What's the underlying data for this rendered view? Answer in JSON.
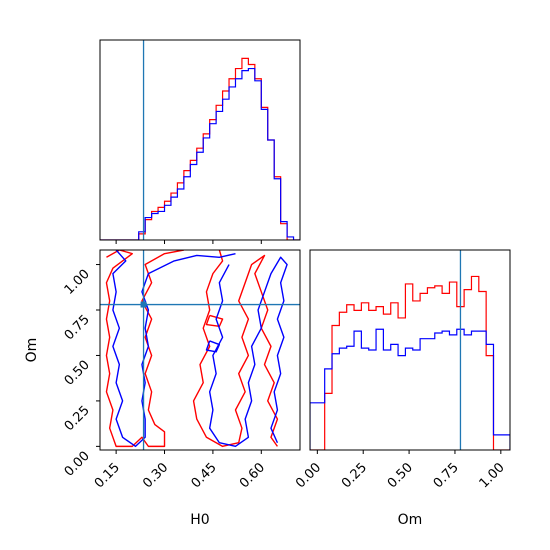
{
  "chart_data": {
    "type": "corner",
    "parameters": [
      "H0",
      "Om"
    ],
    "truths": {
      "H0": 0.235,
      "Om": 0.78
    },
    "colors": {
      "red": "#ff0000",
      "blue": "#0000ff",
      "truth": "#1f77b4"
    },
    "panels": [
      {
        "id": "hist-h0",
        "type": "step-histogram",
        "xlim": [
          0.1,
          0.72
        ],
        "bin_edges": [
          0.1,
          0.12,
          0.14,
          0.16,
          0.18,
          0.2,
          0.22,
          0.24,
          0.26,
          0.28,
          0.3,
          0.32,
          0.34,
          0.36,
          0.38,
          0.4,
          0.42,
          0.44,
          0.46,
          0.48,
          0.5,
          0.52,
          0.54,
          0.56,
          0.58,
          0.6,
          0.62,
          0.64,
          0.66,
          0.68,
          0.7,
          0.72
        ],
        "series": [
          {
            "name": "red",
            "color": "#ff0000",
            "values": [
              0,
              0,
              0,
              0,
              0,
              0,
              0.3,
              1.0,
              1.4,
              1.6,
              1.9,
              2.3,
              2.8,
              3.4,
              3.9,
              4.5,
              5.2,
              5.9,
              6.6,
              7.3,
              7.9,
              8.4,
              8.9,
              8.6,
              7.9,
              6.5,
              4.9,
              3.1,
              0.8,
              0,
              0
            ]
          },
          {
            "name": "blue",
            "color": "#0000ff",
            "values": [
              0,
              0,
              0,
              0,
              0,
              0,
              0.4,
              1.1,
              1.3,
              1.4,
              1.7,
              2.1,
              2.5,
              3.1,
              3.7,
              4.3,
              5.0,
              5.7,
              6.3,
              6.9,
              7.5,
              7.9,
              8.3,
              8.4,
              7.8,
              6.4,
              4.9,
              3.0,
              0.9,
              0.15,
              0
            ]
          }
        ]
      },
      {
        "id": "contour-h0-om",
        "type": "contour",
        "xlim": [
          0.1,
          0.72
        ],
        "ylim": [
          -0.02,
          1.08
        ],
        "xticks": [
          "0.15",
          "0.30",
          "0.45",
          "0.60"
        ],
        "yticks": [
          "0.00",
          "0.25",
          "0.50",
          "0.75",
          "1.00"
        ],
        "xlabel": "H0",
        "ylabel": "Om",
        "contours": [
          {
            "color": "#ff0000",
            "points": [
              [
                0.12,
                1.04
              ],
              [
                0.16,
                1.08
              ],
              [
                0.2,
                1.06
              ],
              [
                0.14,
                0.98
              ],
              [
                0.12,
                0.9
              ],
              [
                0.13,
                0.8
              ],
              [
                0.12,
                0.7
              ],
              [
                0.13,
                0.6
              ],
              [
                0.12,
                0.5
              ],
              [
                0.13,
                0.4
              ],
              [
                0.12,
                0.3
              ],
              [
                0.14,
                0.2
              ],
              [
                0.13,
                0.1
              ],
              [
                0.15,
                0.0
              ],
              [
                0.2,
                0.0
              ],
              [
                0.23,
                0.05
              ],
              [
                0.25,
                0.0
              ],
              [
                0.3,
                0.0
              ],
              [
                0.3,
                0.08
              ],
              [
                0.27,
                0.12
              ],
              [
                0.25,
                0.2
              ],
              [
                0.26,
                0.3
              ],
              [
                0.24,
                0.4
              ],
              [
                0.26,
                0.5
              ],
              [
                0.24,
                0.6
              ],
              [
                0.26,
                0.7
              ],
              [
                0.23,
                0.8
              ],
              [
                0.26,
                0.9
              ],
              [
                0.24,
                1.0
              ],
              [
                0.3,
                1.06
              ],
              [
                0.36,
                1.08
              ]
            ]
          },
          {
            "color": "#ff0000",
            "points": [
              [
                0.47,
                1.08
              ],
              [
                0.48,
                1.02
              ],
              [
                0.45,
                0.95
              ],
              [
                0.43,
                0.85
              ],
              [
                0.44,
                0.75
              ],
              [
                0.42,
                0.65
              ],
              [
                0.44,
                0.55
              ],
              [
                0.41,
                0.45
              ],
              [
                0.42,
                0.35
              ],
              [
                0.39,
                0.25
              ],
              [
                0.4,
                0.15
              ],
              [
                0.43,
                0.05
              ],
              [
                0.48,
                0.0
              ],
              [
                0.53,
                0.02
              ],
              [
                0.54,
                0.1
              ],
              [
                0.52,
                0.2
              ],
              [
                0.55,
                0.3
              ],
              [
                0.53,
                0.4
              ],
              [
                0.56,
                0.5
              ],
              [
                0.54,
                0.6
              ],
              [
                0.56,
                0.7
              ],
              [
                0.53,
                0.8
              ],
              [
                0.55,
                0.9
              ],
              [
                0.57,
                1.0
              ],
              [
                0.61,
                1.05
              ],
              [
                0.58,
                0.95
              ],
              [
                0.6,
                0.85
              ],
              [
                0.62,
                0.75
              ],
              [
                0.6,
                0.65
              ],
              [
                0.63,
                0.55
              ],
              [
                0.61,
                0.45
              ],
              [
                0.64,
                0.35
              ],
              [
                0.62,
                0.25
              ],
              [
                0.65,
                0.15
              ],
              [
                0.63,
                0.05
              ],
              [
                0.65,
                0.0
              ]
            ]
          },
          {
            "color": "#ff0000",
            "points": [
              [
                0.44,
                0.72
              ],
              [
                0.48,
                0.7
              ],
              [
                0.47,
                0.66
              ],
              [
                0.43,
                0.67
              ],
              [
                0.44,
                0.72
              ]
            ]
          },
          {
            "color": "#0000ff",
            "points": [
              [
                0.15,
                1.08
              ],
              [
                0.18,
                1.02
              ],
              [
                0.14,
                0.95
              ],
              [
                0.15,
                0.85
              ],
              [
                0.14,
                0.75
              ],
              [
                0.16,
                0.65
              ],
              [
                0.14,
                0.55
              ],
              [
                0.16,
                0.45
              ],
              [
                0.15,
                0.35
              ],
              [
                0.17,
                0.25
              ],
              [
                0.15,
                0.15
              ],
              [
                0.17,
                0.05
              ],
              [
                0.21,
                0.0
              ],
              [
                0.24,
                0.05
              ],
              [
                0.24,
                0.15
              ],
              [
                0.23,
                0.25
              ],
              [
                0.24,
                0.35
              ],
              [
                0.23,
                0.45
              ],
              [
                0.25,
                0.55
              ],
              [
                0.24,
                0.65
              ],
              [
                0.25,
                0.75
              ],
              [
                0.23,
                0.85
              ],
              [
                0.25,
                0.95
              ],
              [
                0.33,
                1.02
              ],
              [
                0.4,
                1.05
              ],
              [
                0.47,
                1.04
              ],
              [
                0.52,
                1.06
              ]
            ]
          },
          {
            "color": "#0000ff",
            "points": [
              [
                0.5,
                1.0
              ],
              [
                0.47,
                0.9
              ],
              [
                0.48,
                0.8
              ],
              [
                0.46,
                0.7
              ],
              [
                0.48,
                0.6
              ],
              [
                0.45,
                0.5
              ],
              [
                0.46,
                0.4
              ],
              [
                0.44,
                0.3
              ],
              [
                0.45,
                0.2
              ],
              [
                0.44,
                0.1
              ],
              [
                0.47,
                0.02
              ],
              [
                0.52,
                0.0
              ],
              [
                0.56,
                0.05
              ],
              [
                0.55,
                0.15
              ],
              [
                0.57,
                0.25
              ],
              [
                0.56,
                0.35
              ],
              [
                0.58,
                0.45
              ],
              [
                0.57,
                0.55
              ],
              [
                0.6,
                0.65
              ],
              [
                0.59,
                0.75
              ],
              [
                0.61,
                0.85
              ],
              [
                0.63,
                0.95
              ],
              [
                0.66,
                1.04
              ],
              [
                0.68,
                1.0
              ],
              [
                0.66,
                0.9
              ],
              [
                0.67,
                0.8
              ],
              [
                0.65,
                0.7
              ],
              [
                0.67,
                0.6
              ],
              [
                0.65,
                0.5
              ],
              [
                0.66,
                0.4
              ],
              [
                0.64,
                0.3
              ],
              [
                0.65,
                0.2
              ],
              [
                0.63,
                0.1
              ],
              [
                0.65,
                0.02
              ]
            ]
          },
          {
            "color": "#0000ff",
            "points": [
              [
                0.44,
                0.58
              ],
              [
                0.47,
                0.56
              ],
              [
                0.46,
                0.52
              ],
              [
                0.43,
                0.53
              ],
              [
                0.44,
                0.58
              ]
            ]
          }
        ]
      },
      {
        "id": "hist-om",
        "type": "step-histogram",
        "xlim": [
          -0.04,
          1.05
        ],
        "xticks": [
          "0.00",
          "0.25",
          "0.50",
          "0.75",
          "1.00"
        ],
        "xlabel": "Om",
        "bin_edges": [
          -0.04,
          0.0,
          0.04,
          0.08,
          0.12,
          0.16,
          0.2,
          0.24,
          0.28,
          0.32,
          0.36,
          0.4,
          0.44,
          0.48,
          0.52,
          0.56,
          0.6,
          0.64,
          0.68,
          0.72,
          0.76,
          0.8,
          0.84,
          0.88,
          0.92,
          0.96,
          1.0,
          1.05
        ],
        "series": [
          {
            "name": "red",
            "color": "#ff0000",
            "values": [
              0,
              0,
              3.0,
              6.6,
              7.3,
              7.7,
              7.4,
              7.8,
              7.4,
              7.6,
              7.2,
              7.8,
              7.0,
              8.8,
              7.9,
              8.3,
              8.6,
              8.7,
              8.3,
              8.9,
              7.6,
              8.5,
              9.2,
              8.4,
              5.0,
              0,
              0
            ]
          },
          {
            "name": "blue",
            "color": "#0000ff",
            "values": [
              2.5,
              2.5,
              4.3,
              5.1,
              5.4,
              5.5,
              6.3,
              5.4,
              5.3,
              6.4,
              5.3,
              5.6,
              5.0,
              5.4,
              5.3,
              5.9,
              5.9,
              6.2,
              6.3,
              6.1,
              6.4,
              6.1,
              6.3,
              6.3,
              5.6,
              0.8,
              0.8
            ]
          }
        ]
      }
    ]
  }
}
